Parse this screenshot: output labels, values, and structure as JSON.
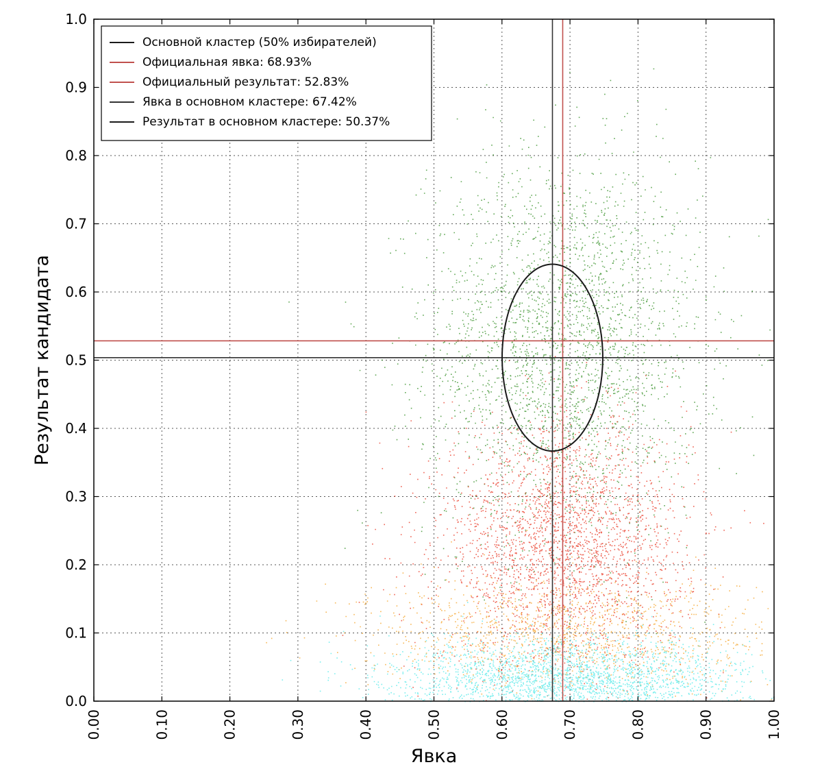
{
  "chart_data": {
    "type": "scatter",
    "xlabel": "Явка",
    "ylabel": "Результат кандидата",
    "xlim": [
      0,
      1
    ],
    "ylim": [
      0,
      1
    ],
    "grid": true,
    "legend_position": "top-left",
    "x_ticks": [
      "0.00",
      "0.10",
      "0.20",
      "0.30",
      "0.40",
      "0.50",
      "0.60",
      "0.70",
      "0.80",
      "0.90",
      "1.00"
    ],
    "y_ticks": [
      "0.0",
      "0.1",
      "0.2",
      "0.3",
      "0.4",
      "0.5",
      "0.6",
      "0.7",
      "0.8",
      "0.9",
      "1.0"
    ],
    "legend": [
      {
        "label": "Основной кластер (50% избирателей)",
        "color": "#1a1a1a"
      },
      {
        "label": "Официальная явка: 68.93%",
        "color": "#c0504d"
      },
      {
        "label": "Официальный результат: 52.83%",
        "color": "#c0504d"
      },
      {
        "label": "Явка в основном кластере: 67.42%",
        "color": "#333333"
      },
      {
        "label": "Результат в основном кластере: 50.37%",
        "color": "#1a1a1a"
      }
    ],
    "reference_lines": [
      {
        "orientation": "vertical",
        "value": 0.6893,
        "color": "#c0504d"
      },
      {
        "orientation": "horizontal",
        "value": 0.5283,
        "color": "#c0504d"
      },
      {
        "orientation": "vertical",
        "value": 0.6742,
        "color": "#333333"
      },
      {
        "orientation": "horizontal",
        "value": 0.5037,
        "color": "#333333"
      }
    ],
    "cluster_ellipse": {
      "cx": 0.6742,
      "cy": 0.5037,
      "rx": 0.074,
      "ry": 0.137,
      "color": "#1a1a1a"
    },
    "point_clouds": [
      {
        "color": "#2e8b1f",
        "center": [
          0.69,
          0.52
        ],
        "spread": [
          0.1,
          0.14
        ],
        "density": "high"
      },
      {
        "color": "#e8301c",
        "center": [
          0.69,
          0.23
        ],
        "spread": [
          0.09,
          0.09
        ],
        "density": "high"
      },
      {
        "color": "#f4a020",
        "center": [
          0.7,
          0.1
        ],
        "spread": [
          0.15,
          0.04
        ],
        "density": "medium"
      },
      {
        "color": "#4ee8e8",
        "center": [
          0.7,
          0.03
        ],
        "spread": [
          0.13,
          0.03
        ],
        "density": "high"
      }
    ]
  }
}
